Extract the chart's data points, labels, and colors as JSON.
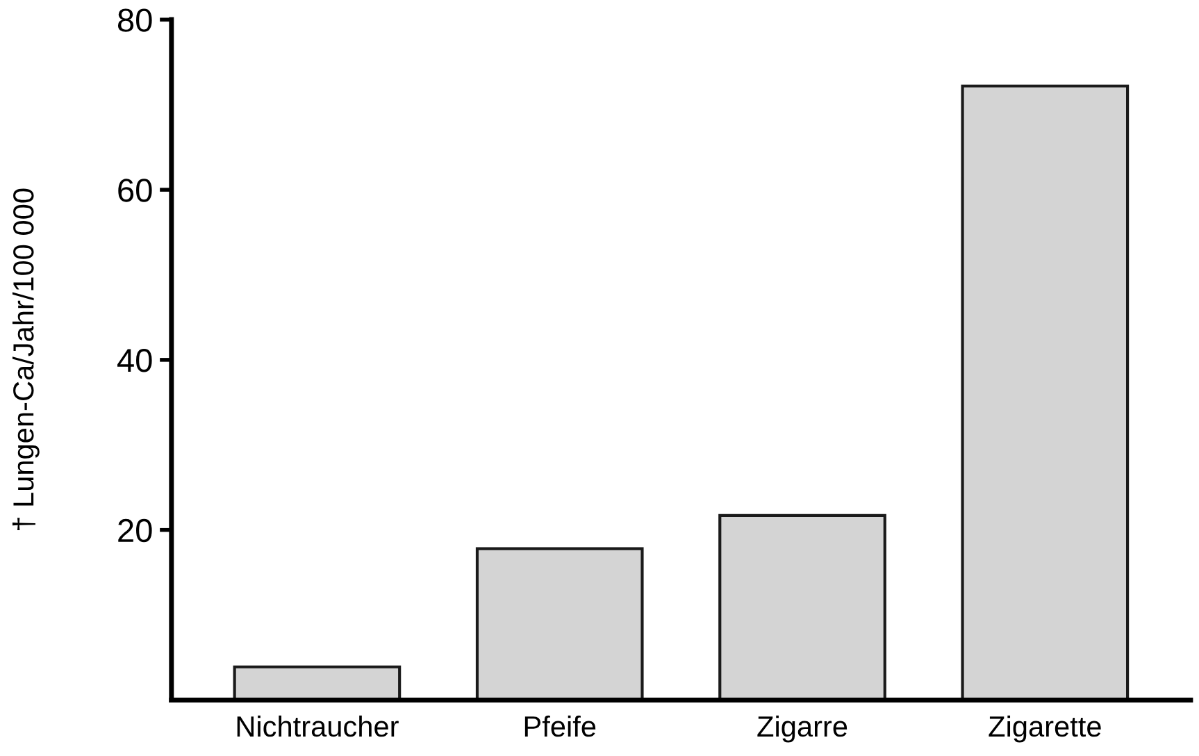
{
  "chart_data": {
    "type": "bar",
    "ylabel": "† Lungen-Ca/Jahr/100 000",
    "categories": [
      "Nichtraucher",
      "Pfeife",
      "Zigarre",
      "Zigarette"
    ],
    "values": [
      3.9,
      17.8,
      21.7,
      72.2
    ],
    "color": "#d4d4d4",
    "ylim": [
      0,
      80
    ],
    "yticks": [
      20,
      40,
      60,
      80
    ],
    "grid": false
  }
}
